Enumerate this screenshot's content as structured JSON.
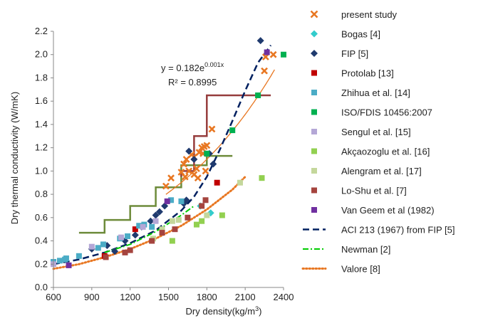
{
  "chart_data": {
    "type": "scatter",
    "title": "",
    "xlabel": "Dry density(kg/m³)",
    "ylabel": "Dry thermal conductivity (W/mK)",
    "xlim": [
      600,
      2400
    ],
    "ylim": [
      0,
      2.2
    ],
    "x_ticks": [
      600,
      900,
      1200,
      1500,
      1800,
      2100,
      2400
    ],
    "y_ticks": [
      0.0,
      0.2,
      0.4,
      0.6,
      0.8,
      1.0,
      1.2,
      1.4,
      1.6,
      1.8,
      2.0,
      2.2
    ],
    "y_tick_labels": [
      "0.0",
      "0.2",
      "0.4",
      "0.6",
      "0.8",
      "1.0",
      "1.2",
      "1.4",
      "1.6",
      "1.8",
      "2.0",
      "2.2"
    ],
    "grid": false,
    "legend_position": "right",
    "annotation": {
      "equation_prefix": "y = 0.182e",
      "equation_exponent": "0.001x",
      "r2": "R² = 0.8995"
    },
    "series": [
      {
        "name": "present study",
        "marker": "cross",
        "color": "#E87722",
        "points": [
          [
            1480,
            0.87
          ],
          [
            1520,
            0.94
          ],
          [
            1600,
            0.99
          ],
          [
            1620,
            1.06
          ],
          [
            1630,
            0.95
          ],
          [
            1640,
            1.1
          ],
          [
            1660,
            1.0
          ],
          [
            1680,
            1.14
          ],
          [
            1700,
            0.97
          ],
          [
            1700,
            1.12
          ],
          [
            1720,
            1.02
          ],
          [
            1730,
            0.94
          ],
          [
            1740,
            1.16
          ],
          [
            1760,
            1.2
          ],
          [
            1770,
            1.15
          ],
          [
            1780,
            1.21
          ],
          [
            1790,
            1.0
          ],
          [
            1800,
            1.22
          ],
          [
            1840,
            1.36
          ],
          [
            2250,
            1.86
          ],
          [
            2260,
            1.98
          ],
          [
            2320,
            2.0
          ]
        ]
      },
      {
        "name": "Bogas [4]",
        "marker": "diamond",
        "color": "#33CCCC",
        "points": [
          [
            1750,
            0.7
          ],
          [
            1830,
            0.64
          ]
        ]
      },
      {
        "name": "FIP [5]",
        "marker": "diamond",
        "color": "#1F3A6E",
        "points": [
          [
            900,
            0.33
          ],
          [
            1020,
            0.36
          ],
          [
            1080,
            0.31
          ],
          [
            1160,
            0.4
          ],
          [
            1240,
            0.45
          ],
          [
            1290,
            0.52
          ],
          [
            1360,
            0.57
          ],
          [
            1400,
            0.62
          ],
          [
            1430,
            0.65
          ],
          [
            1470,
            0.7
          ],
          [
            1620,
            0.72
          ],
          [
            1640,
            0.75
          ],
          [
            1660,
            1.17
          ],
          [
            1700,
            1.1
          ],
          [
            1820,
            1.15
          ],
          [
            1850,
            1.06
          ],
          [
            2220,
            2.12
          ]
        ]
      },
      {
        "name": "Protolab [13]",
        "marker": "square",
        "color": "#C00000",
        "points": [
          [
            1000,
            0.27
          ],
          [
            1240,
            0.5
          ],
          [
            1880,
            0.9
          ]
        ]
      },
      {
        "name": "Zhihua et al. [14]",
        "marker": "square",
        "color": "#4BACC6",
        "points": [
          [
            600,
            0.22
          ],
          [
            650,
            0.23
          ],
          [
            690,
            0.24
          ],
          [
            700,
            0.25
          ],
          [
            800,
            0.27
          ],
          [
            950,
            0.34
          ],
          [
            990,
            0.37
          ],
          [
            1120,
            0.42
          ],
          [
            1180,
            0.44
          ],
          [
            1270,
            0.53
          ],
          [
            1310,
            0.54
          ],
          [
            1370,
            0.52
          ],
          [
            1520,
            0.75
          ],
          [
            1600,
            0.74
          ]
        ]
      },
      {
        "name": "ISO/FDIS 10456:2007",
        "marker": "square",
        "color": "#00B050",
        "points": [
          [
            1800,
            1.15
          ],
          [
            2000,
            1.35
          ],
          [
            2200,
            1.65
          ],
          [
            2400,
            2.0
          ]
        ]
      },
      {
        "name": "Sengul et al. [15]",
        "marker": "square",
        "color": "#B4A7D6",
        "points": [
          [
            600,
            0.2
          ],
          [
            900,
            0.35
          ],
          [
            1130,
            0.43
          ],
          [
            1300,
            0.52
          ],
          [
            1400,
            0.57
          ]
        ]
      },
      {
        "name": "Akçaozoglu et al. [16]",
        "marker": "square",
        "color": "#92D050",
        "points": [
          [
            1530,
            0.4
          ],
          [
            1720,
            0.54
          ],
          [
            1760,
            0.57
          ],
          [
            1920,
            0.62
          ],
          [
            2230,
            0.94
          ]
        ]
      },
      {
        "name": "Alengram et al. [17]",
        "marker": "square",
        "color": "#C4D79B",
        "points": [
          [
            1380,
            0.42
          ],
          [
            1450,
            0.5
          ],
          [
            1530,
            0.57
          ],
          [
            1580,
            0.58
          ],
          [
            1800,
            0.62
          ],
          [
            2060,
            0.9
          ]
        ]
      },
      {
        "name": "Lo-Shu et al. [7]",
        "marker": "square",
        "color": "#A5443E",
        "points": [
          [
            1010,
            0.26
          ],
          [
            1160,
            0.3
          ],
          [
            1200,
            0.32
          ],
          [
            1370,
            0.4
          ],
          [
            1450,
            0.47
          ],
          [
            1550,
            0.5
          ],
          [
            1650,
            0.6
          ],
          [
            1760,
            0.7
          ],
          [
            1790,
            0.75
          ]
        ]
      },
      {
        "name": "Van Geem et al (1982)",
        "marker": "square",
        "color": "#7030A0",
        "points": [
          [
            720,
            0.19
          ],
          [
            1490,
            0.74
          ],
          [
            2270,
            2.02
          ]
        ]
      },
      {
        "name": "ACI 213 (1967) from FIP [5]",
        "line": "dashed",
        "color": "#002060",
        "points": [
          [
            600,
            0.2
          ],
          [
            800,
            0.24
          ],
          [
            1000,
            0.3
          ],
          [
            1200,
            0.38
          ],
          [
            1400,
            0.49
          ],
          [
            1600,
            0.66
          ],
          [
            1700,
            0.78
          ],
          [
            1800,
            0.95
          ],
          [
            1900,
            1.18
          ],
          [
            2000,
            1.43
          ],
          [
            2100,
            1.69
          ],
          [
            2200,
            1.93
          ],
          [
            2300,
            2.08
          ]
        ]
      },
      {
        "name": "Newman [2]",
        "line": "dashdot",
        "color": "#00CC00",
        "points": [
          [
            1000,
            0.3
          ],
          [
            1200,
            0.37
          ],
          [
            1400,
            0.48
          ],
          [
            1600,
            0.62
          ],
          [
            1700,
            0.7
          ]
        ]
      },
      {
        "name": "Valore [8]",
        "line": "dotted",
        "color": "#E87722",
        "points": [
          [
            600,
            0.16
          ],
          [
            800,
            0.2
          ],
          [
            1000,
            0.26
          ],
          [
            1200,
            0.33
          ],
          [
            1400,
            0.42
          ],
          [
            1600,
            0.53
          ],
          [
            1800,
            0.67
          ],
          [
            2000,
            0.84
          ],
          [
            2100,
            0.95
          ]
        ]
      }
    ],
    "step_lines": [
      {
        "color": "#6D8B3A",
        "points": [
          [
            800,
            0.47
          ],
          [
            1000,
            0.47
          ],
          [
            1000,
            0.58
          ],
          [
            1200,
            0.58
          ],
          [
            1200,
            0.7
          ],
          [
            1400,
            0.7
          ],
          [
            1400,
            0.86
          ],
          [
            1600,
            0.86
          ],
          [
            1600,
            1.05
          ],
          [
            1800,
            1.05
          ],
          [
            1800,
            1.13
          ],
          [
            2000,
            1.13
          ]
        ]
      },
      {
        "color": "#963C3C",
        "points": [
          [
            1600,
            0.95
          ],
          [
            1600,
            1.0
          ],
          [
            1700,
            1.0
          ],
          [
            1700,
            1.3
          ],
          [
            1800,
            1.3
          ],
          [
            1800,
            1.65
          ],
          [
            2300,
            1.65
          ]
        ]
      }
    ],
    "trendline": {
      "color": "#E87722",
      "a": 0.182,
      "b": 0.001,
      "x_range": [
        1480,
        2330
      ]
    }
  }
}
